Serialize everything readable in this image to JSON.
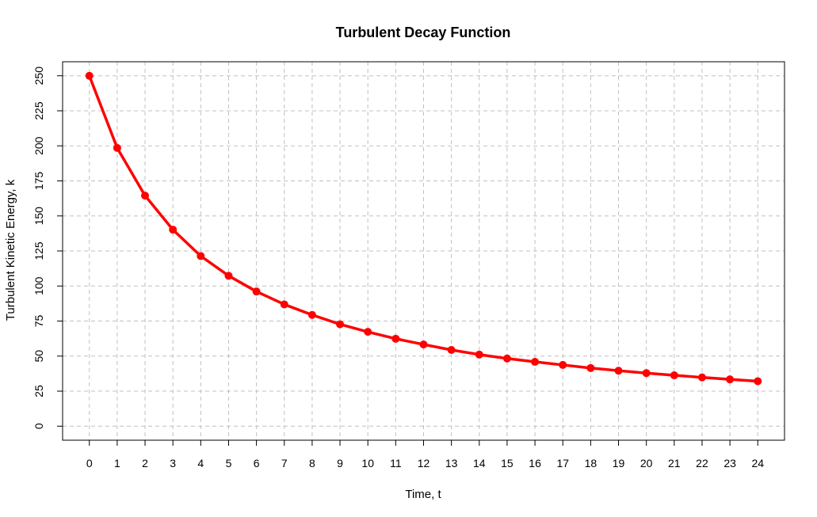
{
  "chart_data": {
    "type": "line",
    "title": "Turbulent Decay Function",
    "xlabel": "Time, t",
    "ylabel": "Turbulent Kinetic Energy, k",
    "x": [
      0,
      1,
      2,
      3,
      4,
      5,
      6,
      7,
      8,
      9,
      10,
      11,
      12,
      13,
      14,
      15,
      16,
      17,
      18,
      19,
      20,
      21,
      22,
      23,
      24
    ],
    "series": [
      {
        "values": [
          250,
          198.5,
          164.5,
          140.2,
          121.4,
          107.3,
          96.1,
          86.9,
          79.4,
          72.7,
          67.3,
          62.4,
          58.3,
          54.4,
          51.1,
          48.3,
          45.9,
          43.7,
          41.5,
          39.6,
          37.9,
          36.3,
          34.8,
          33.4,
          32.1
        ],
        "color": "#ff0000"
      }
    ],
    "xlim": [
      -0.96,
      24.96
    ],
    "ylim": [
      -10,
      260
    ],
    "xticks": [
      0,
      1,
      2,
      3,
      4,
      5,
      6,
      7,
      8,
      9,
      10,
      11,
      12,
      13,
      14,
      15,
      16,
      17,
      18,
      19,
      20,
      21,
      22,
      23,
      24
    ],
    "yticks": [
      0,
      25,
      50,
      75,
      100,
      125,
      150,
      175,
      200,
      225,
      250
    ],
    "grid": true,
    "grid_color": "#c0c0c0",
    "line_color": "#ff0000"
  }
}
